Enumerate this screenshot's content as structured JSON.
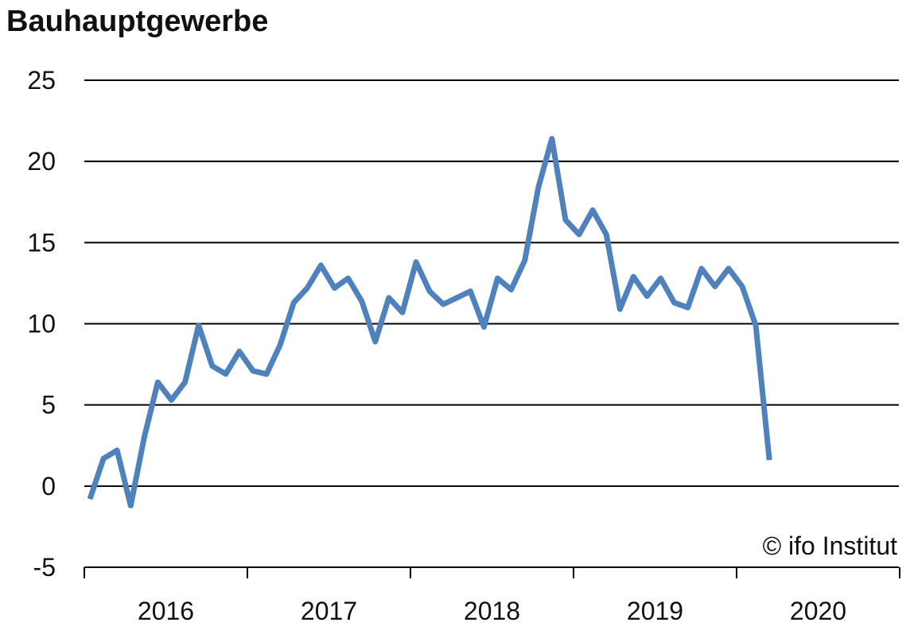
{
  "chart_data": {
    "type": "line",
    "title": "Bauhauptgewerbe",
    "xlabel": "",
    "ylabel": "",
    "ylim": [
      -5,
      25
    ],
    "yticks": [
      25,
      20,
      15,
      10,
      5,
      0,
      -5
    ],
    "year_labels": [
      "2016",
      "2017",
      "2018",
      "2019",
      "2020"
    ],
    "grid": true,
    "series": [
      {
        "color": "#4f81bd",
        "start": "2016-01",
        "values": [
          -0.8,
          1.7,
          2.2,
          -1.2,
          3.0,
          6.4,
          5.3,
          6.4,
          9.9,
          7.4,
          6.9,
          8.3,
          7.1,
          6.9,
          8.7,
          11.3,
          12.2,
          13.6,
          12.2,
          12.8,
          11.4,
          8.9,
          11.6,
          10.7,
          13.8,
          12.0,
          11.2,
          11.6,
          12.0,
          9.8,
          12.8,
          12.1,
          13.9,
          18.4,
          21.4,
          16.4,
          15.5,
          17.0,
          15.5,
          10.9,
          12.9,
          11.7,
          12.8,
          11.3,
          11.0,
          13.4,
          12.3,
          13.4,
          12.3,
          9.9,
          1.6
        ]
      }
    ],
    "credit": "© ifo Institut"
  }
}
